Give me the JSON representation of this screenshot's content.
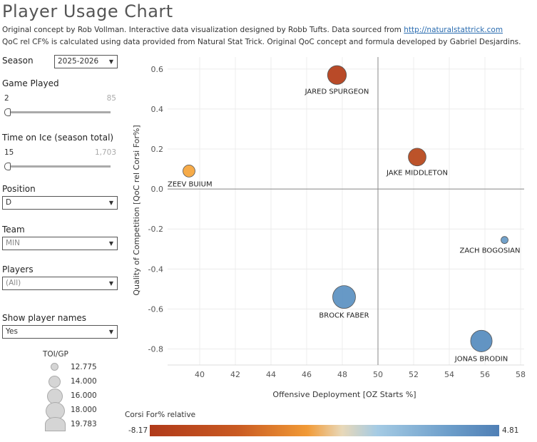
{
  "header": {
    "title": "Player Usage Chart",
    "line1_prefix": "Original concept by Rob Vollman.  Interactive data visualization designed by Robb Tufts.  Data sourced from ",
    "line1_link": "http://naturalstattrick.com",
    "line2": "QoC rel CF% is calculated using data provided from Natural Stat Trick.  Original QoC concept and formula developed by Gabriel Desjardins."
  },
  "filters": {
    "season": {
      "label": "Season",
      "value": "2025-2026"
    },
    "games_played": {
      "label": "Game Played",
      "min": "2",
      "max": "85"
    },
    "toi": {
      "label": "Time on Ice (season total)",
      "min": "15",
      "max": "1,703"
    },
    "position": {
      "label": "Position",
      "value": "D"
    },
    "team": {
      "label": "Team",
      "value": "MIN"
    },
    "players": {
      "label": "Players",
      "value": "(All)"
    },
    "show_names": {
      "label": "Show player names",
      "value": "Yes"
    }
  },
  "size_legend": {
    "title": "TOI/GP",
    "items": [
      "12.775",
      "14.000",
      "16.000",
      "18.000",
      "19.783"
    ]
  },
  "color_legend": {
    "title": "Corsi For% relative",
    "min": "-8.17",
    "max": "4.81",
    "colors": [
      "#b03a1a",
      "#f19a36",
      "#e8d8b8",
      "#a5cbe4",
      "#4f7fb5"
    ]
  },
  "chart_data": {
    "type": "scatter",
    "xlabel": "Offensive Deployment [OZ Starts %]",
    "ylabel": "Quality of Competition [QoC rel Corsi For%]",
    "xlim": [
      38.2,
      58.2
    ],
    "ylim": [
      -0.88,
      0.66
    ],
    "xticks": [
      "40",
      "42",
      "44",
      "46",
      "48",
      "50",
      "52",
      "54",
      "56",
      "58"
    ],
    "yticks": [
      "0.6",
      "0.4",
      "0.2",
      "0.0",
      "-0.2",
      "-0.4",
      "-0.6",
      "-0.8"
    ],
    "reference_lines": {
      "x": 50,
      "y": 0
    },
    "points": [
      {
        "name": "JARED SPURGEON",
        "x": 47.7,
        "y": 0.57,
        "toi_gp": 18.0,
        "cf_rel": -7.0,
        "color": "#b5401c"
      },
      {
        "name": "JAKE MIDDLETON",
        "x": 52.2,
        "y": 0.16,
        "toi_gp": 17.5,
        "cf_rel": -6.5,
        "color": "#b84a1f"
      },
      {
        "name": "ZEEV BUIUM",
        "x": 39.4,
        "y": 0.09,
        "toi_gp": 15.0,
        "cf_rel": -2.5,
        "color": "#f5a73f"
      },
      {
        "name": "ZACH BOGOSIAN",
        "x": 57.1,
        "y": -0.255,
        "toi_gp": 12.775,
        "cf_rel": 3.5,
        "color": "#6a9dc8"
      },
      {
        "name": "BROCK FABER",
        "x": 48.1,
        "y": -0.54,
        "toi_gp": 19.783,
        "cf_rel": 4.0,
        "color": "#5f93c3"
      },
      {
        "name": "JONAS BRODIN",
        "x": 55.8,
        "y": -0.76,
        "toi_gp": 19.2,
        "cf_rel": 4.5,
        "color": "#5a8ec0"
      }
    ]
  }
}
